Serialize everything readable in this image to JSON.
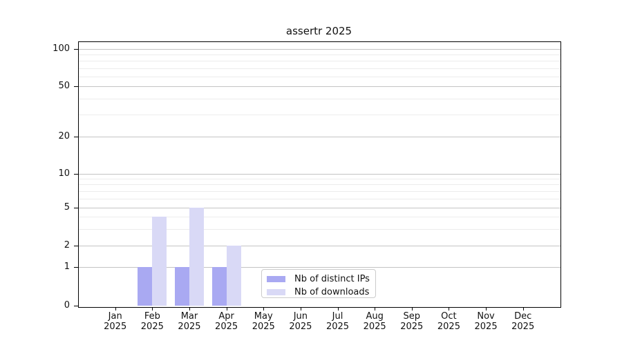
{
  "figure_title": "assertr 2025",
  "chart_data": {
    "type": "bar",
    "title": "assertr 2025",
    "scale": "log-like (symlog with ticks 0,1,2,5,10,20,50,100)",
    "categories": [
      "Jan",
      "Feb",
      "Mar",
      "Apr",
      "May",
      "Jun",
      "Jul",
      "Aug",
      "Sep",
      "Oct",
      "Nov",
      "Dec"
    ],
    "category_year": "2025",
    "series": [
      {
        "name": "Nb of distinct IPs",
        "color": "#a9a9f2",
        "values": [
          0,
          1,
          1,
          1,
          0,
          0,
          0,
          0,
          0,
          0,
          0,
          0
        ]
      },
      {
        "name": "Nb of downloads",
        "color": "#d9d9f6",
        "values": [
          0,
          4,
          5,
          2,
          0,
          0,
          0,
          0,
          0,
          0,
          0,
          0
        ]
      }
    ],
    "y_ticks": [
      0,
      1,
      2,
      5,
      10,
      20,
      50,
      100
    ],
    "y_minor_ticks": [
      3,
      4,
      6,
      7,
      8,
      9,
      30,
      40,
      60,
      70,
      80,
      90
    ],
    "ylim": [
      0,
      100
    ],
    "grid": true,
    "legend_position": "bottom center",
    "xlabel": "",
    "ylabel": ""
  },
  "legend": {
    "items": [
      {
        "label": "Nb of distinct IPs",
        "color": "#a9a9f2"
      },
      {
        "label": "Nb of downloads",
        "color": "#d9d9f6"
      }
    ]
  },
  "colors": {
    "ips_bar": "#a9a9f2",
    "downloads_bar": "#d9d9f6",
    "grid_major": "#c3c3c3",
    "grid_minor": "#ececec",
    "axis": "#000000",
    "legend_border": "#cbcbcb",
    "background": "#ffffff",
    "text": "#111111"
  }
}
